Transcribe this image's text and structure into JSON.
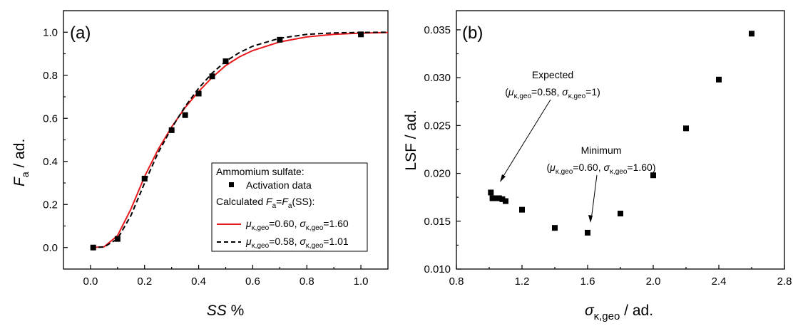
{
  "chart_data": [
    {
      "type": "scatter+line",
      "panel_label": "(a)",
      "xlabel": "SS %",
      "ylabel": "F_a / ad.",
      "xlim": [
        -0.1,
        1.1
      ],
      "ylim": [
        -0.1,
        1.1
      ],
      "xticks": [
        "0.0",
        "0.2",
        "0.4",
        "0.6",
        "0.8",
        "1.0"
      ],
      "yticks": [
        "0.0",
        "0.2",
        "0.4",
        "0.6",
        "0.8",
        "1.0"
      ],
      "grid": false,
      "legend_position": "bottom-right",
      "legend": {
        "title": "Ammomium sulfate:",
        "scatter_label": "Activation data",
        "calc_label": "Calculated Fa=Fa(SS):",
        "red_label": "μκ,geo=0.60, σκ,geo=1.60",
        "black_label": "μκ,geo=0.58, σκ,geo=1.01"
      },
      "series": [
        {
          "name": "Activation data",
          "kind": "scatter",
          "marker": "square",
          "color": "#000000",
          "x": [
            0.01,
            0.1,
            0.2,
            0.3,
            0.35,
            0.4,
            0.45,
            0.5,
            0.7,
            1.0
          ],
          "y": [
            0.0,
            0.04,
            0.32,
            0.545,
            0.615,
            0.715,
            0.795,
            0.865,
            0.965,
            0.99
          ]
        },
        {
          "name": "μκ,geo=0.60, σκ,geo=1.60",
          "kind": "line",
          "style": "solid",
          "color": "#e8191c",
          "x": [
            0.0,
            0.05,
            0.1,
            0.15,
            0.2,
            0.25,
            0.3,
            0.35,
            0.4,
            0.45,
            0.5,
            0.55,
            0.6,
            0.7,
            0.8,
            0.9,
            1.0,
            1.1
          ],
          "y": [
            0.0,
            0.003,
            0.055,
            0.18,
            0.33,
            0.455,
            0.56,
            0.65,
            0.725,
            0.79,
            0.845,
            0.885,
            0.915,
            0.955,
            0.978,
            0.99,
            0.996,
            0.999
          ]
        },
        {
          "name": "μκ,geo=0.58, σκ,geo=1.01",
          "kind": "line",
          "style": "dashed",
          "color": "#000000",
          "x": [
            0.0,
            0.05,
            0.1,
            0.15,
            0.2,
            0.25,
            0.3,
            0.35,
            0.4,
            0.45,
            0.5,
            0.55,
            0.6,
            0.7,
            0.8,
            0.9,
            1.0,
            1.1
          ],
          "y": [
            0.0,
            0.002,
            0.04,
            0.15,
            0.3,
            0.44,
            0.555,
            0.655,
            0.74,
            0.81,
            0.865,
            0.905,
            0.935,
            0.972,
            0.99,
            0.997,
            0.999,
            1.0
          ]
        }
      ]
    },
    {
      "type": "scatter",
      "panel_label": "(b)",
      "xlabel": "σκ,geo / ad.",
      "ylabel": "LSF / ad.",
      "xlim": [
        0.8,
        2.8
      ],
      "ylim": [
        0.01,
        0.037
      ],
      "xticks": [
        "0.8",
        "1.2",
        "1.6",
        "2.0",
        "2.4",
        "2.8"
      ],
      "yticks": [
        "0.010",
        "0.015",
        "0.020",
        "0.025",
        "0.030",
        "0.035"
      ],
      "grid": false,
      "series": [
        {
          "kind": "scatter",
          "marker": "square",
          "color": "#000000",
          "x": [
            1.01,
            1.02,
            1.04,
            1.06,
            1.08,
            1.1,
            1.2,
            1.4,
            1.6,
            1.8,
            2.0,
            2.2,
            2.4,
            2.6
          ],
          "y": [
            0.018,
            0.0174,
            0.0174,
            0.0174,
            0.0173,
            0.0171,
            0.0162,
            0.0143,
            0.0138,
            0.0158,
            0.0198,
            0.0247,
            0.0298,
            0.0346
          ]
        }
      ],
      "annotations": [
        {
          "name": "expected",
          "title": "Expected",
          "mu_value": "=0.58, ",
          "sigma_value": "=1)",
          "target": [
            1.01,
            0.018
          ]
        },
        {
          "name": "minimum",
          "title": "Minimum",
          "mu_value": "=0.60, ",
          "sigma_value": "=1.60)",
          "target": [
            1.6,
            0.0138
          ]
        }
      ]
    }
  ],
  "text": {
    "a_xlabel_main": "SS",
    "a_xlabel_unit": " %",
    "a_ylabel_var": "F",
    "a_ylabel_sub": "a",
    "a_ylabel_unit": " / ad.",
    "b_ylabel": "LSF / ad.",
    "b_xlabel_var": "σ",
    "b_xlabel_sub": "κ,geo",
    "b_xlabel_unit": " / ad.",
    "legend_title": "Ammomium sulfate:",
    "legend_scatter": "Activation data",
    "legend_calc_pre": "Calculated ",
    "legend_calc_F": "F",
    "legend_calc_a": "a",
    "legend_calc_eq": "=",
    "legend_calc_post": "(SS):",
    "mu": "μ",
    "sigma": "σ",
    "sub_kgeo": "κ,geo",
    "legend_red_mu_val": "=0.60, ",
    "legend_red_sig_val": "=1.60",
    "legend_black_mu_val": "=0.58, ",
    "legend_black_sig_val": "=1.01",
    "open_paren": "(",
    "ann_expected_title": "Expected",
    "ann_expected_mu_val": "=0.58, ",
    "ann_expected_sig_val": "=1)",
    "ann_minimum_title": "Minimum",
    "ann_minimum_mu_val": "=0.60, ",
    "ann_minimum_sig_val": "=1.60)"
  }
}
